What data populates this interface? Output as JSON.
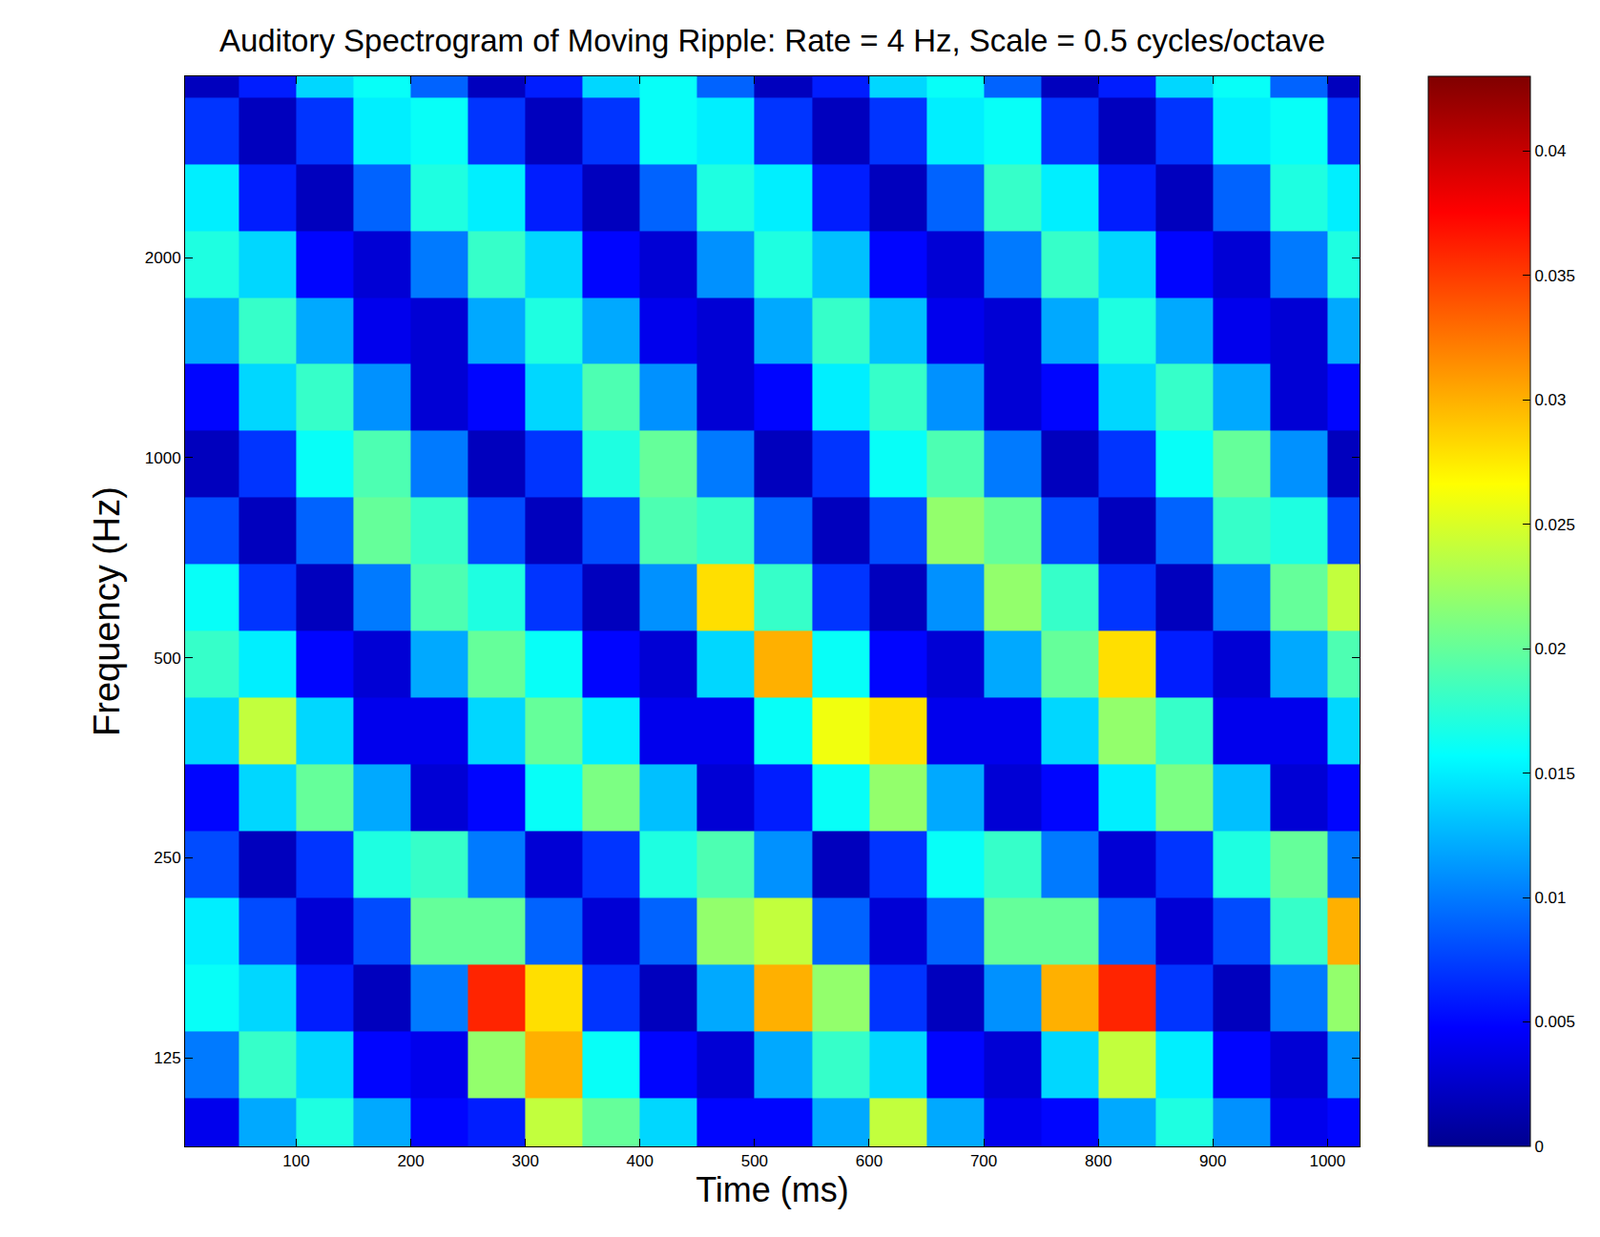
{
  "chart_data": {
    "type": "heatmap",
    "title": "Auditory Spectrogram of Moving Ripple: Rate = 4 Hz, Scale = 0.5 cycles/octave",
    "x_label": "Time (ms)",
    "y_label": "Frequency (Hz)",
    "x": [
      25,
      75,
      125,
      175,
      225,
      275,
      325,
      375,
      425,
      475,
      525,
      575,
      625,
      675,
      725,
      775,
      825,
      875,
      925,
      975,
      1025
    ],
    "y": [
      97,
      122,
      154,
      194,
      244,
      308,
      388,
      489,
      616,
      776,
      978,
      1232,
      1552,
      1955,
      2464,
      3104,
      3910
    ],
    "cells": [
      [
        0.004,
        0.012,
        0.017,
        0.012,
        0.005,
        0.006,
        0.024,
        0.02,
        0.014,
        0.005,
        0.005,
        0.012,
        0.024,
        0.012,
        0.004,
        0.005,
        0.012,
        0.017,
        0.011,
        0.004,
        0.005
      ],
      [
        0.01,
        0.018,
        0.014,
        0.005,
        0.004,
        0.022,
        0.03,
        0.016,
        0.005,
        0.003,
        0.012,
        0.018,
        0.014,
        0.005,
        0.003,
        0.014,
        0.024,
        0.015,
        0.005,
        0.003,
        0.011
      ],
      [
        0.016,
        0.014,
        0.006,
        0.002,
        0.01,
        0.036,
        0.028,
        0.007,
        0.002,
        0.012,
        0.03,
        0.022,
        0.007,
        0.002,
        0.011,
        0.03,
        0.036,
        0.007,
        0.002,
        0.01,
        0.022
      ],
      [
        0.015,
        0.008,
        0.003,
        0.008,
        0.02,
        0.02,
        0.009,
        0.003,
        0.009,
        0.022,
        0.024,
        0.009,
        0.003,
        0.009,
        0.02,
        0.02,
        0.009,
        0.003,
        0.008,
        0.018,
        0.03
      ],
      [
        0.008,
        0.002,
        0.007,
        0.017,
        0.018,
        0.01,
        0.003,
        0.007,
        0.017,
        0.019,
        0.011,
        0.002,
        0.007,
        0.016,
        0.018,
        0.01,
        0.003,
        0.007,
        0.017,
        0.02,
        0.01
      ],
      [
        0.005,
        0.014,
        0.02,
        0.012,
        0.003,
        0.005,
        0.016,
        0.021,
        0.013,
        0.003,
        0.006,
        0.016,
        0.022,
        0.012,
        0.003,
        0.005,
        0.015,
        0.021,
        0.013,
        0.003,
        0.005
      ],
      [
        0.014,
        0.024,
        0.014,
        0.004,
        0.004,
        0.014,
        0.02,
        0.015,
        0.004,
        0.004,
        0.016,
        0.026,
        0.028,
        0.004,
        0.004,
        0.014,
        0.022,
        0.018,
        0.004,
        0.004,
        0.014
      ],
      [
        0.018,
        0.015,
        0.005,
        0.003,
        0.012,
        0.02,
        0.016,
        0.005,
        0.003,
        0.014,
        0.03,
        0.016,
        0.005,
        0.003,
        0.012,
        0.02,
        0.028,
        0.006,
        0.003,
        0.012,
        0.019
      ],
      [
        0.016,
        0.007,
        0.002,
        0.01,
        0.019,
        0.017,
        0.007,
        0.002,
        0.011,
        0.028,
        0.018,
        0.007,
        0.002,
        0.011,
        0.022,
        0.018,
        0.007,
        0.002,
        0.01,
        0.02,
        0.024
      ],
      [
        0.008,
        0.002,
        0.009,
        0.02,
        0.018,
        0.008,
        0.002,
        0.008,
        0.019,
        0.018,
        0.009,
        0.002,
        0.008,
        0.022,
        0.02,
        0.008,
        0.002,
        0.009,
        0.018,
        0.017,
        0.008
      ],
      [
        0.002,
        0.007,
        0.016,
        0.019,
        0.01,
        0.002,
        0.007,
        0.017,
        0.02,
        0.01,
        0.002,
        0.007,
        0.016,
        0.019,
        0.01,
        0.002,
        0.007,
        0.016,
        0.02,
        0.011,
        0.002
      ],
      [
        0.005,
        0.014,
        0.018,
        0.011,
        0.003,
        0.005,
        0.014,
        0.019,
        0.011,
        0.003,
        0.005,
        0.015,
        0.018,
        0.011,
        0.003,
        0.005,
        0.014,
        0.018,
        0.012,
        0.003,
        0.005
      ],
      [
        0.012,
        0.018,
        0.012,
        0.004,
        0.003,
        0.012,
        0.017,
        0.012,
        0.004,
        0.003,
        0.012,
        0.018,
        0.013,
        0.004,
        0.003,
        0.012,
        0.017,
        0.012,
        0.004,
        0.003,
        0.012
      ],
      [
        0.017,
        0.014,
        0.005,
        0.003,
        0.01,
        0.018,
        0.014,
        0.005,
        0.003,
        0.011,
        0.017,
        0.013,
        0.005,
        0.003,
        0.01,
        0.018,
        0.014,
        0.005,
        0.003,
        0.01,
        0.017
      ],
      [
        0.015,
        0.006,
        0.002,
        0.009,
        0.017,
        0.015,
        0.006,
        0.002,
        0.009,
        0.017,
        0.015,
        0.006,
        0.002,
        0.009,
        0.018,
        0.015,
        0.006,
        0.002,
        0.009,
        0.017,
        0.015
      ],
      [
        0.007,
        0.002,
        0.007,
        0.015,
        0.016,
        0.007,
        0.002,
        0.007,
        0.016,
        0.015,
        0.007,
        0.002,
        0.007,
        0.015,
        0.016,
        0.007,
        0.002,
        0.007,
        0.015,
        0.016,
        0.007
      ],
      [
        0.002,
        0.006,
        0.014,
        0.016,
        0.009,
        0.002,
        0.006,
        0.014,
        0.016,
        0.009,
        0.002,
        0.006,
        0.014,
        0.016,
        0.009,
        0.002,
        0.006,
        0.014,
        0.016,
        0.009,
        0.002
      ]
    ],
    "xlim": [
      3,
      1028
    ],
    "ylim": [
      92,
      3750
    ],
    "xticks": [
      100,
      200,
      300,
      400,
      500,
      600,
      700,
      800,
      900,
      1000
    ],
    "yticks": [
      125,
      250,
      500,
      1000,
      2000
    ],
    "log": "y",
    "grid": false,
    "color": "jet",
    "colorbar_range": [
      0,
      0.043
    ],
    "colorbar_ticks": [
      0,
      0.005,
      0.01,
      0.015,
      0.02,
      0.025,
      0.03,
      0.035,
      0.04
    ]
  }
}
